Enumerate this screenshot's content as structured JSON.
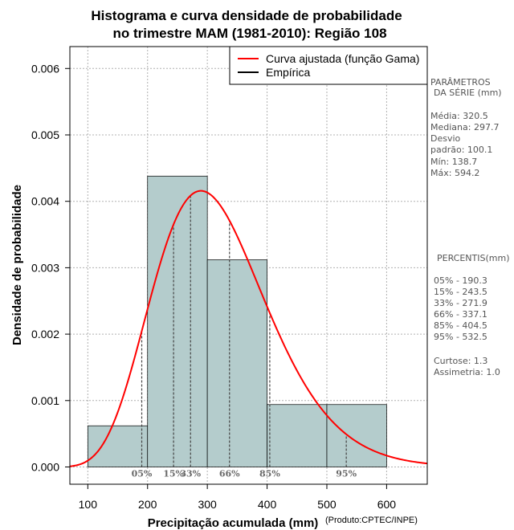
{
  "chart_data": {
    "type": "histogram",
    "title_line1": "Histograma e curva densidade de probabilidade",
    "title_line2": "no trimestre MAM (1981-2010): Região 108",
    "xlabel": "Precipitação acumulada (mm)",
    "ylabel": "Densidade de probabilidade",
    "credit": "(Produto:CPTEC/INPE)",
    "xlim": [
      70,
      668
    ],
    "ylim": [
      -0.00026,
      0.00633
    ],
    "x_ticks": [
      100,
      200,
      300,
      400,
      500,
      600
    ],
    "x_tick_labels": [
      "100",
      "200",
      "300",
      "400",
      "500",
      "600"
    ],
    "y_ticks": [
      0,
      0.001,
      0.002,
      0.003,
      0.004,
      0.005,
      0.006
    ],
    "y_tick_labels": [
      "0.000",
      "0.001",
      "0.002",
      "0.003",
      "0.004",
      "0.005",
      "0.006"
    ],
    "grid": true,
    "bar_color": "#b4cccc",
    "curve_color": "#ff0000",
    "bins": [
      {
        "x0": 100,
        "x1": 200,
        "density": 0.00062
      },
      {
        "x0": 200,
        "x1": 300,
        "density": 0.00438
      },
      {
        "x0": 300,
        "x1": 400,
        "density": 0.00312
      },
      {
        "x0": 400,
        "x1": 500,
        "density": 0.00094
      },
      {
        "x0": 500,
        "x1": 600,
        "density": 0.00094
      }
    ],
    "gamma_fit": {
      "mean": 320.5,
      "sd": 100.1
    },
    "percentiles": [
      {
        "label": "05%",
        "value": 190.3
      },
      {
        "label": "15%",
        "value": 243.5
      },
      {
        "label": "33%",
        "value": 271.9
      },
      {
        "label": "66%",
        "value": 337.1
      },
      {
        "label": "85%",
        "value": 404.5
      },
      {
        "label": "95%",
        "value": 532.5
      }
    ],
    "legend": [
      {
        "label": "Curva ajustada (função Gama)",
        "color": "#ff0000"
      },
      {
        "label": "Empírica",
        "color": "#000000"
      }
    ],
    "legend_position": "top-right"
  },
  "side_panel": {
    "params_title_1": "PARÂMETROS",
    "params_title_2": "DA SÉRIE (mm)",
    "media": "Média:  320.5",
    "mediana": "Mediana:  297.7",
    "desvio_1": "Desvio",
    "desvio_2": "padrão:  100.1",
    "min": "Mín:  138.7",
    "max": "Máx:  594.2",
    "percentis_title": "PERCENTIS(mm)",
    "p05": "05% -  190.3",
    "p15": "15% -  243.5",
    "p33": "33% -  271.9",
    "p66": "66% -  337.1",
    "p85": "85% -  404.5",
    "p95": "95% -  532.5",
    "curtose": "Curtose:  1.3",
    "assimetria": "Assimetria:  1.0"
  }
}
